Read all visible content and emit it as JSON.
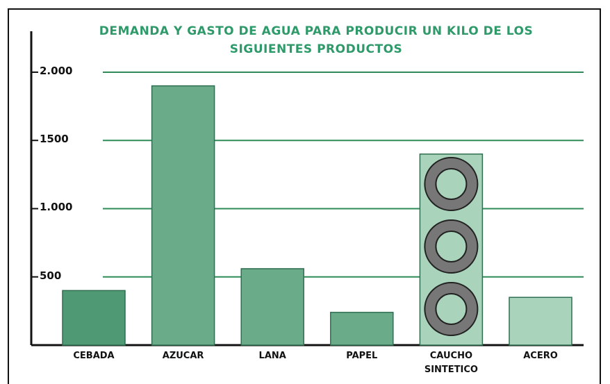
{
  "chart_data": {
    "type": "bar",
    "title": "DEMANDA Y GASTO DE AGUA PARA PRODUCIR UN KILO DE LOS SIGUIENTES PRODUCTOS",
    "categories": [
      "CEBADA",
      "AZUCAR",
      "LANA",
      "PAPEL",
      "CAUCHO SINTETICO",
      "ACERO"
    ],
    "values": [
      400,
      1900,
      560,
      240,
      1400,
      350
    ],
    "colors": [
      "#4f9a74",
      "#6aab8a",
      "#6aab8a",
      "#6aab8a",
      "#a9d3bb",
      "#a9d3bb"
    ],
    "ylim": [
      0,
      2300
    ],
    "yticks": [
      {
        "value": 2000,
        "label": "2.000"
      },
      1500,
      {
        "value": 1000,
        "label": "1.000"
      },
      500
    ],
    "grid": true,
    "grid_color": "#2e8b57"
  }
}
